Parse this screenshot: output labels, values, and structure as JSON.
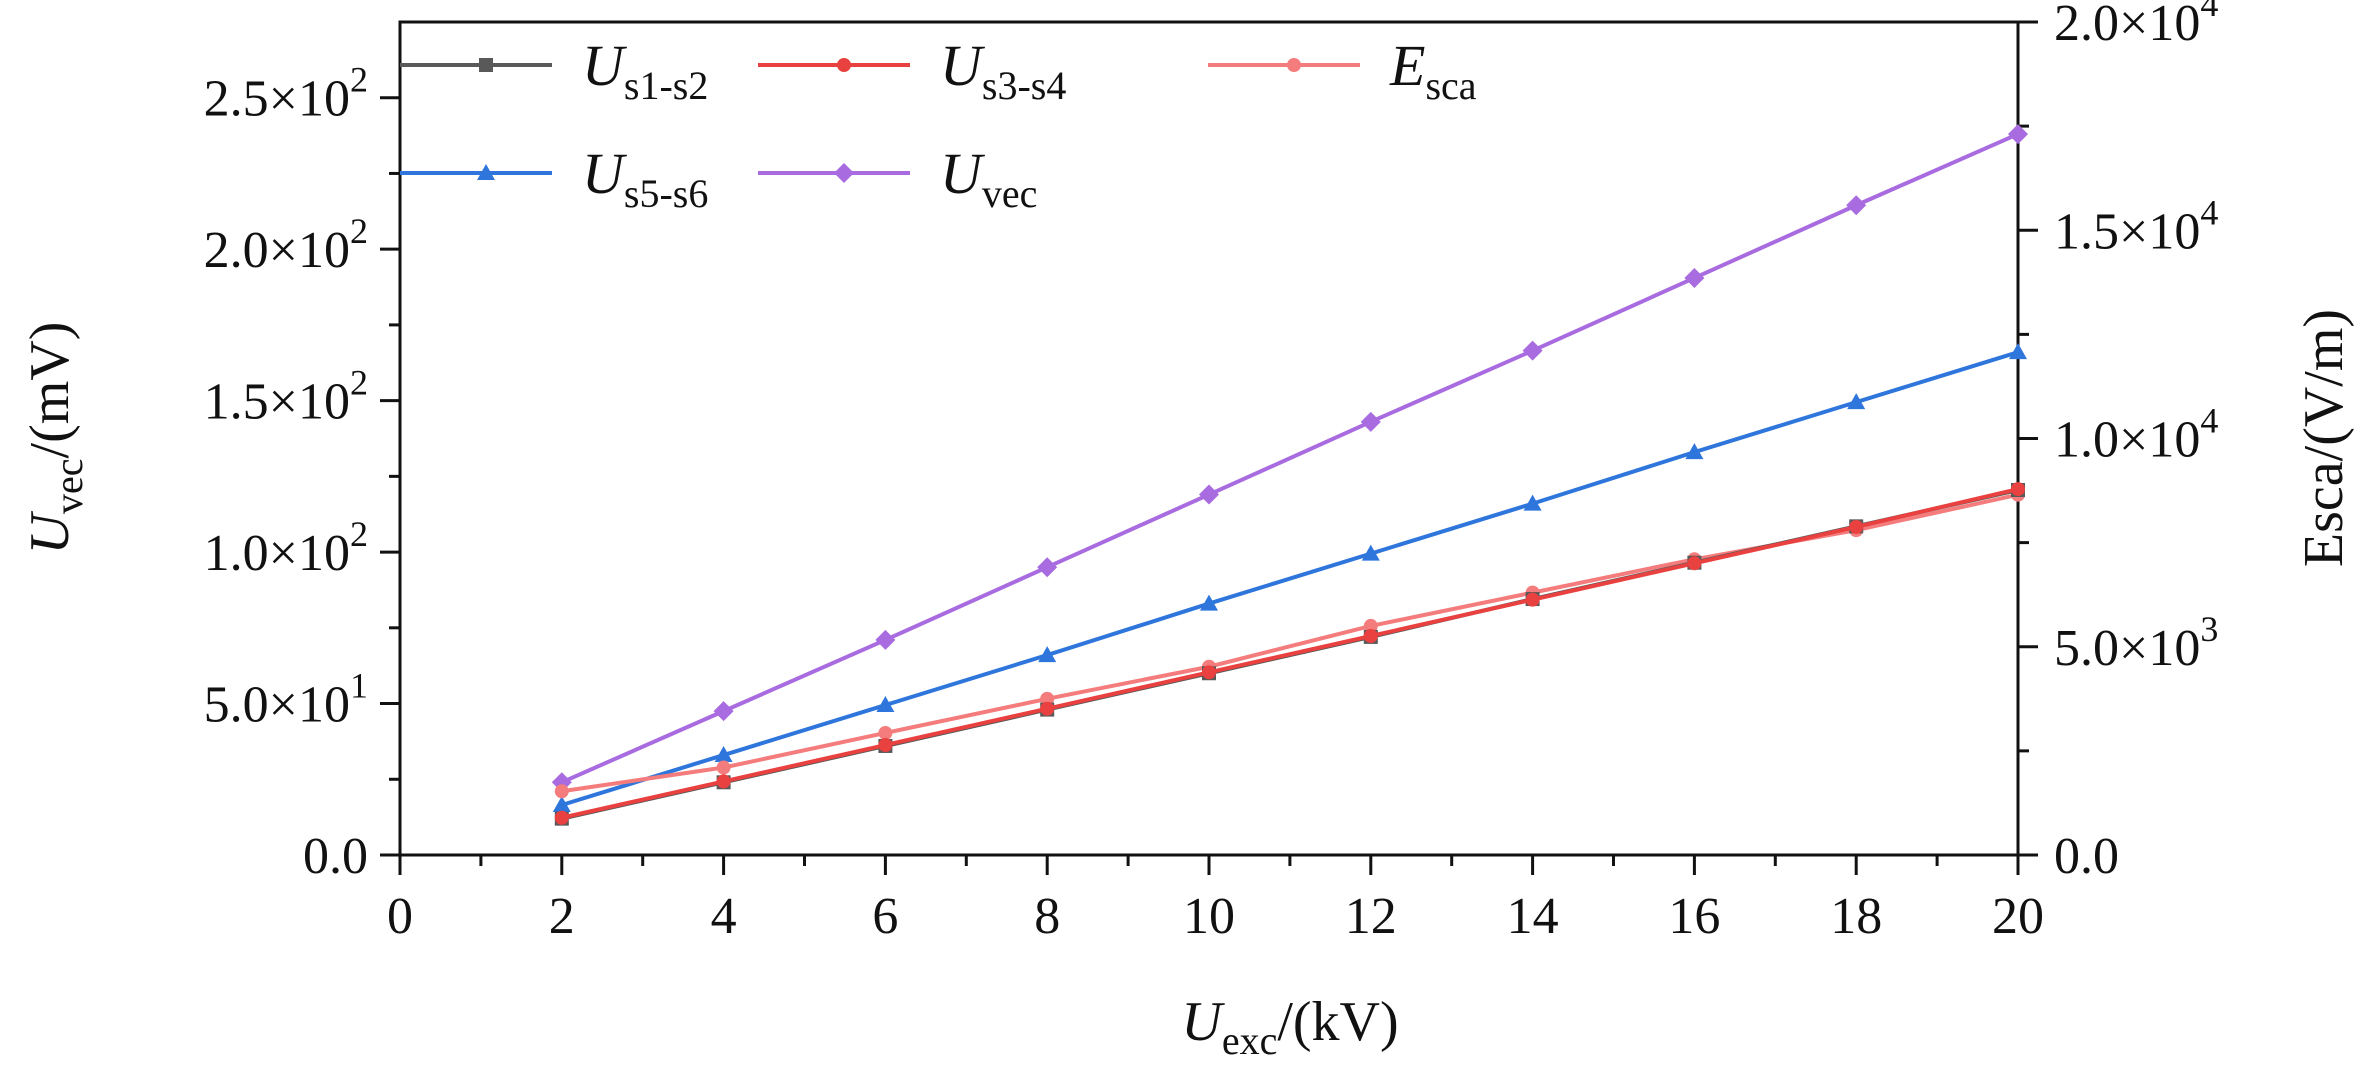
{
  "chart_data": {
    "type": "line",
    "x": [
      2,
      4,
      6,
      8,
      10,
      12,
      14,
      16,
      18,
      20
    ],
    "xlim": [
      0,
      20
    ],
    "xticks": [
      "0",
      "2",
      "4",
      "6",
      "8",
      "10",
      "12",
      "14",
      "16",
      "18",
      "20"
    ],
    "xlabel": {
      "main": "U",
      "sub": "exc",
      "unit": "/(kV)"
    },
    "ylabel_left": {
      "main": "U",
      "sub": "vec",
      "unit": "/(mV)"
    },
    "ylabel_right": "Esca/(V/m)",
    "ylim_left": [
      0,
      275
    ],
    "ylim_right": [
      0,
      20000
    ],
    "yticks_left": [
      {
        "value": 0,
        "label": "0.0"
      },
      {
        "value": 50,
        "mant": "5.0×10",
        "exp": "1"
      },
      {
        "value": 100,
        "mant": "1.0×10",
        "exp": "2"
      },
      {
        "value": 150,
        "mant": "1.5×10",
        "exp": "2"
      },
      {
        "value": 200,
        "mant": "2.0×10",
        "exp": "2"
      },
      {
        "value": 250,
        "mant": "2.5×10",
        "exp": "2"
      }
    ],
    "yticks_right": [
      {
        "value": 0,
        "label": "0.0"
      },
      {
        "value": 5000,
        "mant": "5.0×10",
        "exp": "3"
      },
      {
        "value": 10000,
        "mant": "1.0×10",
        "exp": "4"
      },
      {
        "value": 15000,
        "mant": "1.5×10",
        "exp": "4"
      },
      {
        "value": 20000,
        "mant": "2.0×10",
        "exp": "4"
      }
    ],
    "series": [
      {
        "name": "U",
        "sub": "s1-s2",
        "axis": "left",
        "color": "#595959",
        "marker": "square",
        "values": [
          12,
          24,
          36,
          48,
          60,
          72,
          84.5,
          96.5,
          108.5,
          120.5
        ]
      },
      {
        "name": "U",
        "sub": "s3-s4",
        "axis": "left",
        "color": "#e8413f",
        "marker": "circle",
        "values": [
          12.3,
          24.3,
          36.3,
          48.3,
          60.3,
          72.3,
          84.3,
          96.3,
          108.3,
          120.8
        ]
      },
      {
        "name": "E",
        "sub": "sca",
        "axis": "right",
        "color": "#f47c7c",
        "marker": "circle",
        "values": [
          1530,
          2100,
          2930,
          3750,
          4520,
          5500,
          6300,
          7100,
          7800,
          8650
        ]
      },
      {
        "name": "U",
        "sub": "s5-s6",
        "axis": "left",
        "color": "#2f76dc",
        "marker": "triangle",
        "values": [
          16.5,
          33,
          49.5,
          66,
          83,
          99.5,
          116,
          133,
          149.5,
          166
        ]
      },
      {
        "name": "U",
        "sub": "vec",
        "axis": "left",
        "color": "#a86be0",
        "marker": "diamond",
        "values": [
          24,
          47.5,
          71,
          95,
          119,
          143,
          166.5,
          190.5,
          214.5,
          238
        ]
      }
    ]
  }
}
